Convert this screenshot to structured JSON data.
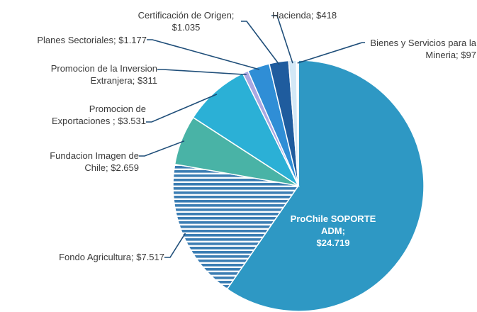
{
  "chart_data": {
    "type": "pie",
    "categories": [
      "ProChile SOPORTE ADM;",
      "Fondo Agricultura;",
      "Fundacion Imagen de Chile;",
      "Promocion de Exportaciones ;",
      "Promocion de la Inversion Extranjera;",
      "Planes Sectoriales;",
      "Certificación de Origen;",
      "Hacienda;",
      "Bienes y Servicios para la Mineria;"
    ],
    "values": [
      24719,
      7517,
      2659,
      3531,
      311,
      1177,
      1035,
      418,
      97
    ],
    "value_labels": [
      "$24.719",
      "$7.517",
      "$2.659",
      "$3.531",
      "$311",
      "$1.177",
      "$1.035",
      "$418",
      "$97"
    ],
    "colors": [
      "#2e98c4",
      "#3b7db3",
      "#49b3a6",
      "#2bb0d6",
      "#aaa8e2",
      "#2f8ed6",
      "#1f5c9e",
      "#d3e8f6",
      "#f4f9fd"
    ],
    "hatched": [
      1
    ]
  }
}
